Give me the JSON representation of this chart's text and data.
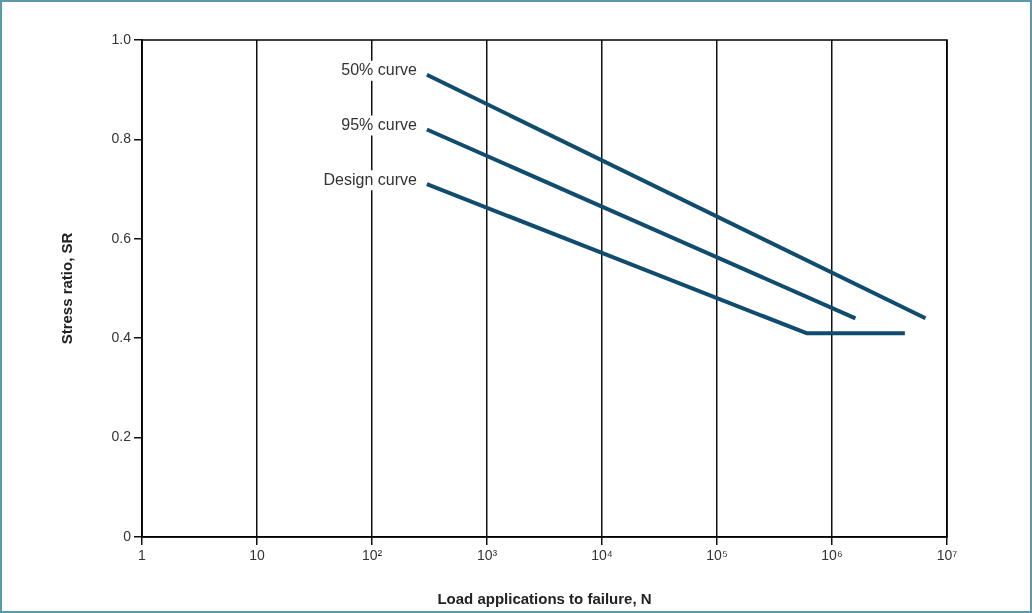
{
  "chart_data": {
    "type": "line",
    "xlabel": "Load applications to failure, N",
    "ylabel": "Stress ratio, SR",
    "log": "x",
    "grid": "x",
    "legend": false,
    "marker": "none",
    "line_style": "solid",
    "xlim": [
      1,
      10000000
    ],
    "xticks": [
      1,
      10,
      {
        "value": 100,
        "label": "10²"
      },
      {
        "value": 1000,
        "label": "10³"
      },
      {
        "value": 10000,
        "label": "10⁴"
      },
      {
        "value": 100000,
        "label": "10⁵"
      },
      {
        "value": 1000000,
        "label": "10⁶"
      },
      {
        "value": 10000000,
        "label": "10⁷"
      }
    ],
    "ylim": [
      0,
      1
    ],
    "yticks": [
      {
        "value": 0,
        "label": "0"
      },
      {
        "value": 0.2,
        "label": "0.2"
      },
      {
        "value": 0.4,
        "label": "0.4"
      },
      {
        "value": 0.6,
        "label": "0.6"
      },
      {
        "value": 0.8,
        "label": "0.8"
      },
      {
        "value": 1,
        "label": "1.0"
      }
    ],
    "series": [
      {
        "name": "50% curve",
        "color": "#0f4c6e",
        "x": [
          300,
          6500000
        ],
        "values": [
          0.93,
          0.44
        ]
      },
      {
        "name": "95% curve",
        "color": "#0f4c6e",
        "x": [
          300,
          1600000
        ],
        "values": [
          0.82,
          0.44
        ]
      },
      {
        "name": "Design curve",
        "color": "#0f4c6e",
        "x": [
          300,
          600000,
          4300000
        ],
        "values": [
          0.71,
          0.41,
          0.41
        ]
      }
    ]
  }
}
